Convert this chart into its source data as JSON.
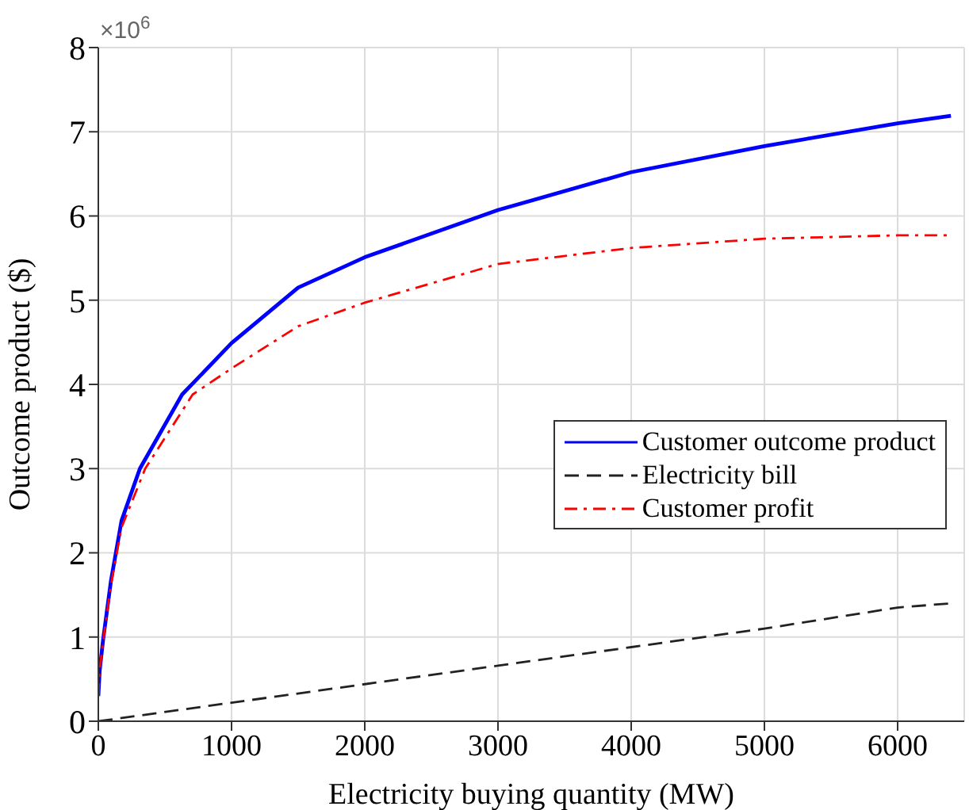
{
  "chart_data": {
    "type": "line",
    "xlabel": "Electricity buying quantity (MW)",
    "ylabel": "Outcome product ($)",
    "annotations": [
      "×10$^{6}$"
    ],
    "xlim": [
      0,
      6500
    ],
    "xticks": [
      0,
      1000,
      2000,
      3000,
      4000,
      5000,
      6000
    ],
    "ylim": [
      0,
      8
    ],
    "yticks": [
      0,
      1,
      2,
      3,
      4,
      5,
      6,
      7,
      8
    ],
    "grid": true,
    "legend": "right",
    "series": [
      {
        "name": "Customer outcome product",
        "color": "#0000ff",
        "line_style": "solid",
        "x": [
          0,
          10,
          36,
          95,
          174,
          312,
          629,
          1000,
          1500,
          2000,
          3000,
          4000,
          5000,
          6000,
          6400
        ],
        "values": [
          0.3,
          0.6,
          0.97,
          1.67,
          2.38,
          3.0,
          3.88,
          4.49,
          5.15,
          5.51,
          6.07,
          6.52,
          6.83,
          7.1,
          7.19
        ]
      },
      {
        "name": "Electricity bill",
        "color": "#222222",
        "line_style": "dashed",
        "x": [
          0,
          1000,
          2000,
          3000,
          4000,
          5000,
          6000,
          6400
        ],
        "values": [
          0,
          0.22,
          0.44,
          0.66,
          0.88,
          1.1,
          1.35,
          1.4
        ]
      },
      {
        "name": "Customer profit",
        "color": "#ff0000",
        "line_style": "dashdot",
        "x": [
          0,
          10,
          36,
          95,
          174,
          352,
          708,
          1000,
          1500,
          2000,
          3000,
          4000,
          5000,
          6000,
          6400
        ],
        "values": [
          0.3,
          0.6,
          0.95,
          1.62,
          2.3,
          3.0,
          3.88,
          4.19,
          4.69,
          4.97,
          5.43,
          5.62,
          5.73,
          5.77,
          5.77
        ]
      }
    ]
  }
}
